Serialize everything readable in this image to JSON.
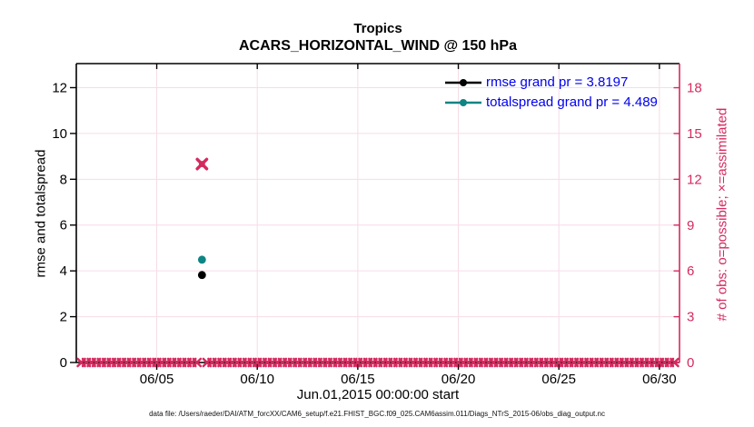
{
  "titles": {
    "line1": "Tropics",
    "line2": "ACARS_HORIZONTAL_WIND @ 150 hPa"
  },
  "axes": {
    "left_label": "rmse and totalspread",
    "right_label": "# of obs: o=possible; ×=assimilated",
    "x_label": "Jun.01,2015 00:00:00 start"
  },
  "legend": {
    "text_color": "#0000ee",
    "entries": [
      {
        "label": "rmse grand pr = 3.8197",
        "series": "rmse"
      },
      {
        "label": "totalspread grand pr = 4.489",
        "series": "totalspread"
      }
    ]
  },
  "footer": {
    "text": "data file: /Users/raeder/DAI/ATM_forcXX/CAM6_setup/f.e21.FHIST_BGC.f09_025.CAM6assim.011/Diags_NTrS_2015-06/obs_diag_output.nc"
  },
  "chart_data": {
    "type": "scatter",
    "title": "Tropics",
    "subtitle": "ACARS_HORIZONTAL_WIND @ 150 hPa",
    "xlabel": "Jun.01,2015 00:00:00 start",
    "ylabel_left": "rmse and totalspread",
    "ylabel_right": "# of obs: o=possible; ×=assimilated",
    "x_axis": {
      "lim_days": [
        1,
        31
      ],
      "ticks": [
        {
          "day": 5,
          "label": "06/05"
        },
        {
          "day": 10,
          "label": "06/10"
        },
        {
          "day": 15,
          "label": "06/15"
        },
        {
          "day": 20,
          "label": "06/20"
        },
        {
          "day": 25,
          "label": "06/25"
        },
        {
          "day": 30,
          "label": "06/30"
        }
      ]
    },
    "y_left": {
      "lim": [
        0,
        13.05
      ],
      "ticks": [
        0,
        2,
        4,
        6,
        8,
        10,
        12
      ]
    },
    "y_right": {
      "lim": [
        0,
        19.58
      ],
      "ticks": [
        0,
        3,
        6,
        9,
        12,
        15,
        18
      ]
    },
    "grid": true,
    "series": [
      {
        "name": "rmse",
        "legend": "rmse grand pr = 3.8197",
        "color": "#000000",
        "marker": "dot",
        "axis": "left",
        "points": [
          {
            "day": 7.25,
            "value": 3.8197
          }
        ]
      },
      {
        "name": "totalspread",
        "legend": "totalspread grand pr = 4.489",
        "color": "#0e8584",
        "marker": "dot",
        "axis": "left",
        "points": [
          {
            "day": 7.25,
            "value": 4.489
          }
        ]
      },
      {
        "name": "obs-count",
        "color": "#d42a5f",
        "marker": "x+o",
        "axis": "right",
        "points": [
          {
            "day": 7.25,
            "value": 13
          }
        ],
        "zero_line_marks": {
          "start_day": 1.25,
          "end_day": 30.8,
          "step_days": 0.25,
          "skip_days": [
            7.25
          ],
          "value": 0
        }
      }
    ],
    "colors": {
      "grid": "#f7dce6",
      "right_axis": "#d42a5f",
      "legend_text": "#0000ee"
    }
  }
}
